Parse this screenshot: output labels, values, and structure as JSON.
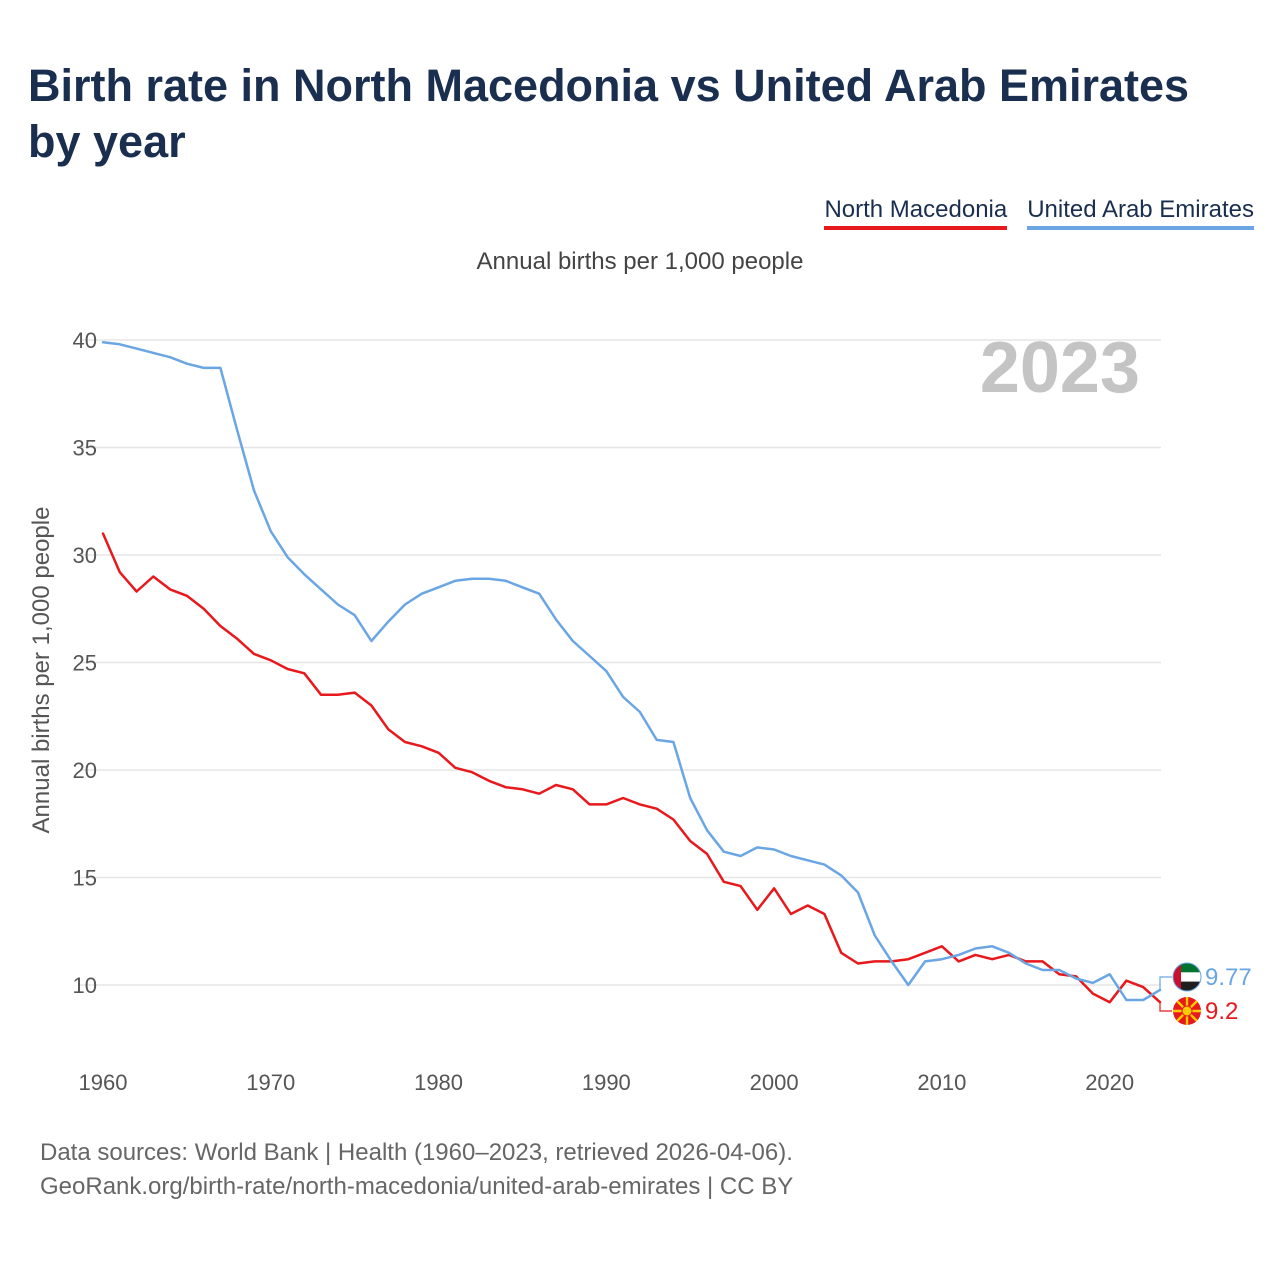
{
  "title": "Birth rate in North Macedonia vs United Arab Emirates by year",
  "footer": {
    "line1": "Data sources: World Bank | Health (1960–2023, retrieved 2026-04-06).",
    "line2": "GeoRank.org/birth-rate/north-macedonia/united-arab-emirates | CC BY"
  },
  "chart_data": {
    "type": "line",
    "title": "Birth rate in North Macedonia vs United Arab Emirates by year",
    "subtitle": "Annual births per 1,000 people",
    "ylabel": "Annual births per 1,000 people",
    "xlabel": "",
    "year_watermark": "2023",
    "xlim": [
      1960,
      2023
    ],
    "ylim": [
      7,
      40
    ],
    "x_ticks": [
      1960,
      1970,
      1980,
      1990,
      2000,
      2010,
      2020
    ],
    "y_ticks": [
      10,
      15,
      20,
      25,
      30,
      35,
      40
    ],
    "grid": true,
    "legend_position": "top-right",
    "x": [
      1960,
      1961,
      1962,
      1963,
      1964,
      1965,
      1966,
      1967,
      1968,
      1969,
      1970,
      1971,
      1972,
      1973,
      1974,
      1975,
      1976,
      1977,
      1978,
      1979,
      1980,
      1981,
      1982,
      1983,
      1984,
      1985,
      1986,
      1987,
      1988,
      1989,
      1990,
      1991,
      1992,
      1993,
      1994,
      1995,
      1996,
      1997,
      1998,
      1999,
      2000,
      2001,
      2002,
      2003,
      2004,
      2005,
      2006,
      2007,
      2008,
      2009,
      2010,
      2011,
      2012,
      2013,
      2014,
      2015,
      2016,
      2017,
      2018,
      2019,
      2020,
      2021,
      2022,
      2023
    ],
    "series": [
      {
        "name": "North Macedonia",
        "color": "#e8191c",
        "end_label": "9.2",
        "values": [
          31.0,
          29.2,
          28.3,
          29.0,
          28.4,
          28.1,
          27.5,
          26.7,
          26.1,
          25.4,
          25.1,
          24.7,
          24.5,
          23.5,
          23.5,
          23.6,
          23.0,
          21.9,
          21.3,
          21.1,
          20.8,
          20.1,
          19.9,
          19.5,
          19.2,
          19.1,
          18.9,
          19.3,
          19.1,
          18.4,
          18.4,
          18.7,
          18.4,
          18.2,
          17.7,
          16.7,
          16.1,
          14.8,
          14.6,
          13.5,
          14.5,
          13.3,
          13.7,
          13.3,
          11.5,
          11.0,
          11.1,
          11.1,
          11.2,
          11.5,
          11.8,
          11.1,
          11.4,
          11.2,
          11.4,
          11.1,
          11.1,
          10.5,
          10.4,
          9.6,
          9.2,
          10.2,
          9.9,
          9.2
        ]
      },
      {
        "name": "United Arab Emirates",
        "color": "#6aa6e4",
        "end_label": "9.77",
        "values": [
          39.9,
          39.8,
          39.6,
          39.4,
          39.2,
          38.9,
          38.7,
          38.7,
          35.8,
          33.0,
          31.1,
          29.9,
          29.1,
          28.4,
          27.7,
          27.2,
          26.0,
          26.9,
          27.7,
          28.2,
          28.5,
          28.8,
          28.9,
          28.9,
          28.8,
          28.5,
          28.2,
          27.0,
          26.0,
          25.3,
          24.6,
          23.4,
          22.7,
          21.4,
          21.3,
          18.7,
          17.2,
          16.2,
          16.0,
          16.4,
          16.3,
          16.0,
          15.8,
          15.6,
          15.1,
          14.3,
          12.3,
          11.1,
          10.0,
          11.1,
          11.2,
          11.4,
          11.7,
          11.8,
          11.5,
          11.0,
          10.7,
          10.7,
          10.3,
          10.1,
          10.5,
          9.3,
          9.3,
          9.77
        ]
      }
    ]
  }
}
